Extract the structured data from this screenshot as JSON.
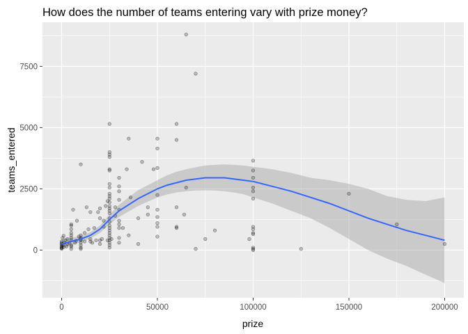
{
  "chart_data": {
    "type": "scatter",
    "title": "How does the number of teams entering vary with prize money?",
    "xlabel": "prize",
    "ylabel": "teams_entered",
    "xlim": [
      -10000,
      210000
    ],
    "ylim": [
      -1950,
      9300
    ],
    "x_ticks": [
      0,
      50000,
      100000,
      150000,
      200000
    ],
    "x_tick_labels": [
      "0",
      "50000",
      "100000",
      "150000",
      "200000"
    ],
    "y_ticks": [
      0,
      2500,
      5000,
      7500
    ],
    "y_tick_labels": [
      "0",
      "2500",
      "5000",
      "7500"
    ],
    "grid": true,
    "colors": {
      "panel_background": "#ebebeb",
      "grid_major": "#ffffff",
      "point": "#000000",
      "smooth_line": "#3366ff",
      "confidence_band": "#999999"
    },
    "points": [
      [
        0,
        100
      ],
      [
        0,
        150
      ],
      [
        0,
        200
      ],
      [
        0,
        250
      ],
      [
        0,
        300
      ],
      [
        0,
        350
      ],
      [
        0,
        50
      ],
      [
        0,
        80
      ],
      [
        500,
        500
      ],
      [
        800,
        200
      ],
      [
        1000,
        580
      ],
      [
        1500,
        300
      ],
      [
        1000,
        120
      ],
      [
        2000,
        400
      ],
      [
        2500,
        150
      ],
      [
        3000,
        450
      ],
      [
        3000,
        250
      ],
      [
        4000,
        300
      ],
      [
        5000,
        200
      ],
      [
        5000,
        400
      ],
      [
        5000,
        500
      ],
      [
        5000,
        600
      ],
      [
        5000,
        700
      ],
      [
        5000,
        850
      ],
      [
        5000,
        1000
      ],
      [
        5000,
        1050
      ],
      [
        5000,
        150
      ],
      [
        5000,
        50
      ],
      [
        6000,
        1650
      ],
      [
        7000,
        300
      ],
      [
        7500,
        380
      ],
      [
        8000,
        1200
      ],
      [
        9000,
        550
      ],
      [
        10000,
        100
      ],
      [
        10000,
        200
      ],
      [
        10000,
        300
      ],
      [
        10000,
        400
      ],
      [
        10000,
        450
      ],
      [
        10000,
        500
      ],
      [
        10000,
        600
      ],
      [
        10000,
        50
      ],
      [
        10000,
        3500
      ],
      [
        12000,
        350
      ],
      [
        12000,
        700
      ],
      [
        13000,
        1750
      ],
      [
        14000,
        850
      ],
      [
        15000,
        450
      ],
      [
        15000,
        350
      ],
      [
        15000,
        1550
      ],
      [
        16000,
        300
      ],
      [
        17000,
        900
      ],
      [
        18000,
        400
      ],
      [
        19000,
        1550
      ],
      [
        20000,
        1700
      ],
      [
        20000,
        1300
      ],
      [
        20000,
        400
      ],
      [
        20000,
        250
      ],
      [
        21000,
        450
      ],
      [
        22000,
        950
      ],
      [
        22000,
        1200
      ],
      [
        23000,
        1800
      ],
      [
        24000,
        400
      ],
      [
        24000,
        2000
      ],
      [
        25000,
        5150
      ],
      [
        25000,
        4000
      ],
      [
        25000,
        3900
      ],
      [
        25000,
        3800
      ],
      [
        25000,
        3300
      ],
      [
        25000,
        3250
      ],
      [
        25000,
        2700
      ],
      [
        25000,
        2550
      ],
      [
        25000,
        2100
      ],
      [
        25000,
        1950
      ],
      [
        25000,
        1800
      ],
      [
        25000,
        1700
      ],
      [
        25000,
        1600
      ],
      [
        25000,
        1500
      ],
      [
        25000,
        1300
      ],
      [
        25000,
        1000
      ],
      [
        25000,
        900
      ],
      [
        25000,
        800
      ],
      [
        25000,
        700
      ],
      [
        25000,
        500
      ],
      [
        25000,
        400
      ],
      [
        25000,
        300
      ],
      [
        25000,
        200
      ],
      [
        25000,
        100
      ],
      [
        25000,
        2300
      ],
      [
        25000,
        2200
      ],
      [
        25000,
        1150
      ],
      [
        25000,
        600
      ],
      [
        26000,
        450
      ],
      [
        28000,
        1400
      ],
      [
        28000,
        1750
      ],
      [
        30000,
        2950
      ],
      [
        30000,
        2600
      ],
      [
        30000,
        2400
      ],
      [
        30000,
        2050
      ],
      [
        30000,
        1650
      ],
      [
        30000,
        1200
      ],
      [
        30000,
        1050
      ],
      [
        30000,
        900
      ],
      [
        30000,
        500
      ],
      [
        30000,
        300
      ],
      [
        32000,
        900
      ],
      [
        34000,
        3300
      ],
      [
        35000,
        4550
      ],
      [
        35000,
        600
      ],
      [
        36000,
        2150
      ],
      [
        40000,
        1300
      ],
      [
        40000,
        250
      ],
      [
        42000,
        3600
      ],
      [
        45000,
        1750
      ],
      [
        45000,
        1450
      ],
      [
        48000,
        3300
      ],
      [
        50000,
        4550
      ],
      [
        50000,
        4150
      ],
      [
        50000,
        3350
      ],
      [
        50000,
        2250
      ],
      [
        50000,
        1650
      ],
      [
        50000,
        1350
      ],
      [
        50000,
        1100
      ],
      [
        50000,
        950
      ],
      [
        50000,
        550
      ],
      [
        60000,
        5150
      ],
      [
        60000,
        4500
      ],
      [
        60000,
        1750
      ],
      [
        60000,
        950
      ],
      [
        60000,
        900
      ],
      [
        64000,
        1450
      ],
      [
        65000,
        8800
      ],
      [
        65000,
        2550
      ],
      [
        70000,
        7200
      ],
      [
        70000,
        50
      ],
      [
        75000,
        450
      ],
      [
        80000,
        800
      ],
      [
        98000,
        450
      ],
      [
        100000,
        3650
      ],
      [
        100000,
        3250
      ],
      [
        100000,
        2950
      ],
      [
        100000,
        2550
      ],
      [
        100000,
        2400
      ],
      [
        100000,
        2100
      ],
      [
        100000,
        950
      ],
      [
        100000,
        850
      ],
      [
        100000,
        700
      ],
      [
        100000,
        650
      ],
      [
        100000,
        100
      ],
      [
        100000,
        50
      ],
      [
        100000,
        0
      ],
      [
        125000,
        50
      ],
      [
        150000,
        2300
      ],
      [
        175000,
        1050
      ],
      [
        200000,
        250
      ]
    ],
    "smooth_fit": {
      "x": [
        0,
        5000,
        10000,
        15000,
        20000,
        25000,
        30000,
        35000,
        40000,
        45000,
        50000,
        55000,
        60000,
        65000,
        70000,
        75000,
        80000,
        85000,
        90000,
        95000,
        100000,
        110000,
        120000,
        130000,
        140000,
        150000,
        160000,
        170000,
        180000,
        190000,
        200000
      ],
      "y": [
        250,
        350,
        450,
        600,
        850,
        1250,
        1600,
        1850,
        2100,
        2300,
        2500,
        2650,
        2750,
        2850,
        2900,
        2950,
        2950,
        2950,
        2900,
        2850,
        2800,
        2600,
        2400,
        2150,
        1900,
        1600,
        1300,
        1050,
        800,
        600,
        400
      ],
      "lower": [
        50,
        200,
        320,
        470,
        700,
        1050,
        1350,
        1580,
        1800,
        1980,
        2150,
        2270,
        2350,
        2400,
        2430,
        2440,
        2430,
        2400,
        2350,
        2280,
        2150,
        1900,
        1600,
        1300,
        900,
        450,
        0,
        -350,
        -650,
        -1000,
        -1350
      ],
      "upper": [
        450,
        500,
        580,
        730,
        1000,
        1450,
        1850,
        2150,
        2450,
        2650,
        2850,
        3050,
        3200,
        3300,
        3380,
        3450,
        3480,
        3500,
        3480,
        3450,
        3400,
        3300,
        3150,
        2950,
        2850,
        2700,
        2500,
        2200,
        2050,
        2000,
        2150
      ]
    }
  }
}
